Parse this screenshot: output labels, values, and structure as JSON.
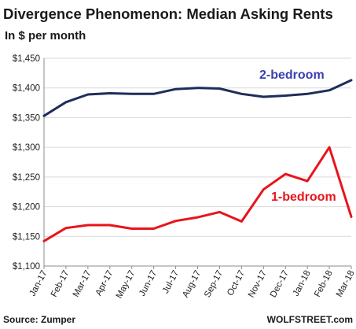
{
  "chart_data": {
    "type": "line",
    "title": "Divergence Phenomenon: Median Asking Rents",
    "subtitle": "In $ per month",
    "categories": [
      "Jan-17",
      "Feb-17",
      "Mar-17",
      "Apr-17",
      "May-17",
      "Jun-17",
      "Jul-17",
      "Aug-17",
      "Sep-17",
      "Oct-17",
      "Nov-17",
      "Dec-17",
      "Jan-18",
      "Feb-18",
      "Mar-18"
    ],
    "y_tick_labels": [
      "$1,100",
      "$1,150",
      "$1,200",
      "$1,250",
      "$1,300",
      "$1,350",
      "$1,400",
      "$1,450"
    ],
    "ylim": [
      1100,
      1450
    ],
    "grid": true,
    "series": [
      {
        "name": "2-bedroom",
        "color": "#1f2d5a",
        "label_color": "#3b3fb0",
        "values": [
          1353,
          1376,
          1389,
          1391,
          1390,
          1390,
          1398,
          1400,
          1399,
          1390,
          1385,
          1387,
          1390,
          1396,
          1413
        ]
      },
      {
        "name": "1-bedroom",
        "color": "#e8141b",
        "label_color": "#e8141b",
        "values": [
          1142,
          1164,
          1169,
          1169,
          1163,
          1163,
          1176,
          1182,
          1191,
          1175,
          1229,
          1255,
          1243,
          1300,
          1183
        ]
      }
    ],
    "source": "Source: Zumper",
    "credit": "WOLFSTREET.com"
  }
}
